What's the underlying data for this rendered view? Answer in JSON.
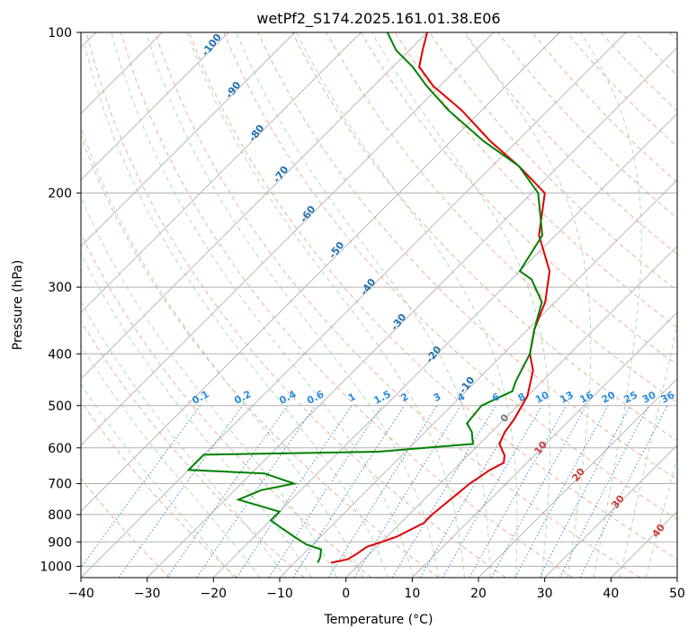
{
  "chart_data": {
    "type": "line",
    "title": "wetPf2_S174.2025.161.01.38.E06",
    "xlabel": "Temperature (°C)",
    "ylabel": "Pressure (hPa)",
    "xlim": [
      -40,
      50
    ],
    "ylim": [
      1050,
      100
    ],
    "y_scale": "log",
    "x_ticks": [
      -40,
      -30,
      -20,
      -10,
      0,
      10,
      20,
      30,
      40,
      50
    ],
    "y_ticks": [
      100,
      200,
      300,
      400,
      500,
      600,
      700,
      800,
      900,
      1000
    ],
    "grid": true,
    "skew_diagram": "skew-T log-p",
    "series": [
      {
        "color": "#e00000",
        "points": [
          [
            -4.5,
            985
          ],
          [
            -2.5,
            970
          ],
          [
            -2,
            950
          ],
          [
            -1.5,
            920
          ],
          [
            0,
            900
          ],
          [
            1.5,
            880
          ],
          [
            3.5,
            830
          ],
          [
            3.5,
            800
          ],
          [
            4.5,
            700
          ],
          [
            5.5,
            660
          ],
          [
            6.5,
            640
          ],
          [
            5.5,
            620
          ],
          [
            3,
            590
          ],
          [
            2,
            560
          ],
          [
            1.5,
            530
          ],
          [
            0,
            480
          ],
          [
            -3,
            430
          ],
          [
            -6,
            400
          ],
          [
            -9,
            360
          ],
          [
            -11.5,
            320
          ],
          [
            -15.5,
            280
          ],
          [
            -22.5,
            240
          ],
          [
            -28,
            200
          ],
          [
            -36,
            178
          ],
          [
            -44,
            160
          ],
          [
            -53,
            140
          ],
          [
            -61,
            126
          ],
          [
            -66,
            116
          ],
          [
            -68,
            108
          ],
          [
            -70,
            100
          ]
        ]
      },
      {
        "color": "#008000",
        "points": [
          [
            -6.5,
            985
          ],
          [
            -7,
            960
          ],
          [
            -8,
            930
          ],
          [
            -11,
            910
          ],
          [
            -14,
            880
          ],
          [
            -17,
            850
          ],
          [
            -20,
            820
          ],
          [
            -20,
            790
          ],
          [
            -28,
            750
          ],
          [
            -26,
            720
          ],
          [
            -22,
            700
          ],
          [
            -28,
            670
          ],
          [
            -40,
            660
          ],
          [
            -40,
            618
          ],
          [
            -14,
            610
          ],
          [
            -1,
            590
          ],
          [
            -3,
            560
          ],
          [
            -5,
            540
          ],
          [
            -5.5,
            500
          ],
          [
            -3,
            470
          ],
          [
            -4,
            450
          ],
          [
            -6,
            400
          ],
          [
            -9,
            360
          ],
          [
            -12,
            320
          ],
          [
            -17,
            290
          ],
          [
            -20,
            280
          ],
          [
            -22,
            240
          ],
          [
            -29,
            200
          ],
          [
            -36,
            178
          ],
          [
            -45,
            160
          ],
          [
            -55,
            140
          ],
          [
            -62,
            126
          ],
          [
            -67,
            116
          ],
          [
            -72,
            108
          ],
          [
            -76,
            100
          ]
        ]
      }
    ],
    "dry_adiabat_labels": [
      "-100",
      "-90",
      "-80",
      "-70",
      "-60",
      "-50",
      "-40",
      "-30",
      "-20",
      "-10"
    ],
    "mixing_ratio_labels": [
      "0.1",
      "0.2",
      "0.4",
      "0.6",
      "1",
      "1.5",
      "2",
      "3",
      "4",
      "6",
      "8",
      "10",
      "13",
      "16",
      "20",
      "25",
      "30",
      "36"
    ],
    "moist_adiabat_labels": [
      "0",
      "10",
      "20",
      "30",
      "40"
    ]
  }
}
